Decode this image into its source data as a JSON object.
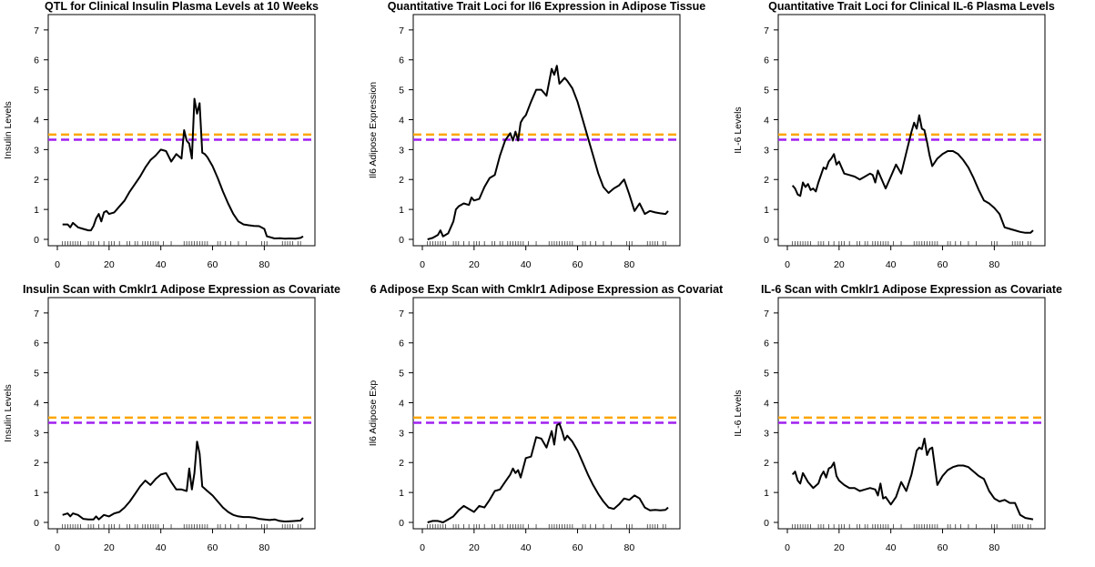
{
  "colors": {
    "curve": "#000000",
    "threshold_high": "#ffa500",
    "threshold_low": "#a020f0",
    "axis": "#000000",
    "rug": "#333333"
  },
  "chart_data": [
    {
      "type": "line",
      "title": "QTL for Clinical Insulin Plasma Levels at 10 Weeks",
      "xlabel": "",
      "ylabel": "Insulin Levels",
      "xlim": [
        0,
        95
      ],
      "ylim": [
        0,
        7
      ],
      "x_ticks": [
        0,
        20,
        40,
        60,
        80
      ],
      "y_ticks": [
        0,
        1,
        2,
        3,
        4,
        5,
        6,
        7
      ],
      "thresholds": [
        3.5,
        3.33
      ],
      "series": [
        {
          "x": [
            2,
            4,
            5,
            6,
            8,
            10,
            12,
            13,
            14,
            15,
            16,
            17,
            18,
            19,
            20,
            22,
            24,
            26,
            28,
            30,
            32,
            34,
            36,
            38,
            40,
            42,
            44,
            46,
            48,
            49,
            50,
            51,
            52,
            53,
            54,
            55,
            56,
            57,
            58,
            60,
            62,
            64,
            66,
            68,
            70,
            72,
            74,
            76,
            78,
            80,
            81,
            82,
            84,
            86,
            88,
            90,
            92,
            94,
            95
          ],
          "y": [
            0.5,
            0.5,
            0.4,
            0.55,
            0.4,
            0.35,
            0.3,
            0.3,
            0.45,
            0.7,
            0.85,
            0.6,
            0.9,
            0.95,
            0.85,
            0.9,
            1.1,
            1.3,
            1.6,
            1.85,
            2.1,
            2.4,
            2.65,
            2.8,
            3.0,
            2.95,
            2.6,
            2.85,
            2.7,
            3.65,
            3.3,
            3.2,
            2.7,
            4.7,
            4.2,
            4.55,
            2.9,
            2.85,
            2.75,
            2.45,
            2.05,
            1.6,
            1.2,
            0.85,
            0.6,
            0.5,
            0.47,
            0.45,
            0.44,
            0.35,
            0.1,
            0.08,
            0.03,
            0.04,
            0.02,
            0.03,
            0.02,
            0.05,
            0.1
          ]
        }
      ]
    },
    {
      "type": "line",
      "title": "Quantitative Trait Loci for Il6 Expression in Adipose Tissue",
      "xlabel": "",
      "ylabel": "Il6 Adipose Expression",
      "xlim": [
        0,
        95
      ],
      "ylim": [
        0,
        7
      ],
      "x_ticks": [
        0,
        20,
        40,
        60,
        80
      ],
      "y_ticks": [
        0,
        1,
        2,
        3,
        4,
        5,
        6,
        7
      ],
      "thresholds": [
        3.5,
        3.33
      ],
      "series": [
        {
          "x": [
            2,
            4,
            6,
            7,
            8,
            10,
            12,
            13,
            14,
            16,
            18,
            19,
            20,
            22,
            24,
            26,
            28,
            30,
            32,
            34,
            35,
            36,
            37,
            38,
            39,
            40,
            42,
            44,
            46,
            48,
            50,
            51,
            52,
            53,
            54,
            55,
            56,
            58,
            60,
            62,
            64,
            66,
            68,
            70,
            72,
            74,
            76,
            78,
            80,
            82,
            84,
            86,
            88,
            90,
            92,
            94,
            95
          ],
          "y": [
            0.0,
            0.05,
            0.15,
            0.3,
            0.1,
            0.2,
            0.6,
            1.0,
            1.1,
            1.2,
            1.15,
            1.4,
            1.3,
            1.35,
            1.75,
            2.05,
            2.15,
            2.8,
            3.3,
            3.55,
            3.3,
            3.6,
            3.3,
            3.9,
            4.05,
            4.15,
            4.6,
            5.0,
            5.0,
            4.8,
            5.7,
            5.5,
            5.8,
            5.2,
            5.3,
            5.4,
            5.3,
            5.05,
            4.6,
            4.0,
            3.4,
            2.8,
            2.2,
            1.75,
            1.55,
            1.7,
            1.8,
            2.0,
            1.5,
            0.95,
            1.2,
            0.85,
            0.95,
            0.9,
            0.87,
            0.85,
            0.95
          ]
        }
      ]
    },
    {
      "type": "line",
      "title": "Quantitative Trait Loci for Clinical IL-6 Plasma Levels",
      "xlabel": "",
      "ylabel": "IL-6 Levels",
      "xlim": [
        0,
        95
      ],
      "ylim": [
        0,
        7
      ],
      "x_ticks": [
        0,
        20,
        40,
        60,
        80
      ],
      "y_ticks": [
        0,
        1,
        2,
        3,
        4,
        5,
        6,
        7
      ],
      "thresholds": [
        3.5,
        3.33
      ],
      "series": [
        {
          "x": [
            2,
            3,
            4,
            5,
            6,
            7,
            8,
            9,
            10,
            11,
            12,
            14,
            15,
            16,
            17,
            18,
            19,
            20,
            22,
            24,
            26,
            28,
            30,
            32,
            33,
            34,
            35,
            36,
            38,
            40,
            42,
            44,
            46,
            48,
            49,
            50,
            51,
            52,
            53,
            54,
            55,
            56,
            58,
            60,
            62,
            64,
            66,
            68,
            70,
            72,
            74,
            76,
            78,
            80,
            82,
            84,
            86,
            88,
            90,
            92,
            94,
            95
          ],
          "y": [
            1.8,
            1.7,
            1.5,
            1.45,
            1.9,
            1.75,
            1.85,
            1.65,
            1.7,
            1.6,
            1.9,
            2.4,
            2.35,
            2.6,
            2.7,
            2.85,
            2.5,
            2.6,
            2.2,
            2.15,
            2.1,
            2.0,
            2.1,
            2.2,
            2.15,
            1.9,
            2.3,
            2.1,
            1.7,
            2.1,
            2.5,
            2.2,
            2.9,
            3.6,
            3.9,
            3.7,
            4.15,
            3.7,
            3.65,
            3.25,
            2.8,
            2.45,
            2.7,
            2.85,
            2.95,
            2.95,
            2.85,
            2.65,
            2.4,
            2.05,
            1.65,
            1.3,
            1.2,
            1.05,
            0.85,
            0.4,
            0.35,
            0.3,
            0.25,
            0.22,
            0.22,
            0.3
          ]
        }
      ]
    },
    {
      "type": "line",
      "title": "Insulin Scan with Cmklr1 Adipose Expression as Covariate",
      "xlabel": "",
      "ylabel": "Insulin Levels",
      "xlim": [
        0,
        95
      ],
      "ylim": [
        0,
        7
      ],
      "x_ticks": [
        0,
        20,
        40,
        60,
        80
      ],
      "y_ticks": [
        0,
        1,
        2,
        3,
        4,
        5,
        6,
        7
      ],
      "thresholds": [
        3.5,
        3.33
      ],
      "series": [
        {
          "x": [
            2,
            4,
            5,
            6,
            8,
            10,
            12,
            14,
            15,
            16,
            18,
            20,
            22,
            24,
            26,
            28,
            30,
            32,
            34,
            36,
            38,
            40,
            42,
            44,
            46,
            48,
            50,
            51,
            52,
            53,
            54,
            55,
            56,
            58,
            60,
            62,
            64,
            66,
            68,
            70,
            72,
            74,
            76,
            78,
            80,
            82,
            84,
            86,
            88,
            90,
            92,
            94,
            95
          ],
          "y": [
            0.25,
            0.3,
            0.2,
            0.3,
            0.25,
            0.12,
            0.1,
            0.1,
            0.2,
            0.1,
            0.25,
            0.2,
            0.3,
            0.35,
            0.5,
            0.7,
            0.95,
            1.2,
            1.4,
            1.25,
            1.45,
            1.6,
            1.65,
            1.35,
            1.1,
            1.1,
            1.05,
            1.8,
            1.1,
            1.65,
            2.7,
            2.3,
            1.2,
            1.05,
            0.9,
            0.7,
            0.5,
            0.35,
            0.25,
            0.2,
            0.18,
            0.18,
            0.16,
            0.12,
            0.1,
            0.08,
            0.1,
            0.05,
            0.03,
            0.04,
            0.05,
            0.06,
            0.15
          ]
        }
      ]
    },
    {
      "type": "line",
      "title": "6 Adipose Exp Scan with Cmklr1 Adipose Expression as Covariat",
      "xlabel": "",
      "ylabel": "Il6 Adipose Exp",
      "xlim": [
        0,
        95
      ],
      "ylim": [
        0,
        7
      ],
      "x_ticks": [
        0,
        20,
        40,
        60,
        80
      ],
      "y_ticks": [
        0,
        1,
        2,
        3,
        4,
        5,
        6,
        7
      ],
      "thresholds": [
        3.5,
        3.33
      ],
      "series": [
        {
          "x": [
            2,
            4,
            6,
            8,
            10,
            12,
            14,
            16,
            18,
            20,
            22,
            24,
            26,
            28,
            30,
            32,
            34,
            35,
            36,
            37,
            38,
            40,
            42,
            44,
            46,
            48,
            50,
            51,
            52,
            53,
            54,
            55,
            56,
            58,
            60,
            62,
            64,
            66,
            68,
            70,
            72,
            74,
            76,
            78,
            80,
            82,
            84,
            86,
            88,
            90,
            92,
            94,
            95
          ],
          "y": [
            0.0,
            0.05,
            0.05,
            0.0,
            0.1,
            0.2,
            0.4,
            0.55,
            0.45,
            0.35,
            0.55,
            0.5,
            0.75,
            1.05,
            1.1,
            1.35,
            1.6,
            1.8,
            1.65,
            1.75,
            1.5,
            2.15,
            2.2,
            2.85,
            2.8,
            2.5,
            3.05,
            2.6,
            3.25,
            3.3,
            3.05,
            2.75,
            2.9,
            2.7,
            2.4,
            2.0,
            1.6,
            1.25,
            0.95,
            0.7,
            0.5,
            0.45,
            0.6,
            0.8,
            0.75,
            0.9,
            0.8,
            0.5,
            0.4,
            0.42,
            0.4,
            0.42,
            0.5
          ]
        }
      ]
    },
    {
      "type": "line",
      "title": "IL-6 Scan with Cmklr1 Adipose Expression as Covariate",
      "xlabel": "",
      "ylabel": "IL-6 Levels",
      "xlim": [
        0,
        95
      ],
      "ylim": [
        0,
        7
      ],
      "x_ticks": [
        0,
        20,
        40,
        60,
        80
      ],
      "y_ticks": [
        0,
        1,
        2,
        3,
        4,
        5,
        6,
        7
      ],
      "thresholds": [
        3.5,
        3.33
      ],
      "series": [
        {
          "x": [
            2,
            3,
            4,
            5,
            6,
            8,
            10,
            12,
            13,
            14,
            15,
            16,
            17,
            18,
            19,
            20,
            22,
            24,
            26,
            28,
            30,
            32,
            34,
            35,
            36,
            37,
            38,
            40,
            42,
            44,
            46,
            48,
            49,
            50,
            51,
            52,
            53,
            54,
            55,
            56,
            58,
            60,
            62,
            64,
            66,
            68,
            70,
            72,
            74,
            76,
            78,
            80,
            82,
            84,
            86,
            88,
            90,
            92,
            94,
            95
          ],
          "y": [
            1.6,
            1.7,
            1.4,
            1.3,
            1.65,
            1.35,
            1.15,
            1.3,
            1.55,
            1.7,
            1.5,
            1.8,
            1.85,
            2.0,
            1.55,
            1.4,
            1.25,
            1.15,
            1.15,
            1.05,
            1.1,
            1.15,
            1.1,
            0.9,
            1.3,
            0.8,
            0.85,
            0.6,
            0.85,
            1.35,
            1.05,
            1.6,
            2.0,
            2.4,
            2.5,
            2.45,
            2.8,
            2.25,
            2.45,
            2.5,
            1.25,
            1.55,
            1.75,
            1.85,
            1.9,
            1.9,
            1.85,
            1.7,
            1.55,
            1.45,
            1.05,
            0.8,
            0.7,
            0.75,
            0.65,
            0.65,
            0.25,
            0.15,
            0.12,
            0.1
          ]
        }
      ]
    }
  ]
}
